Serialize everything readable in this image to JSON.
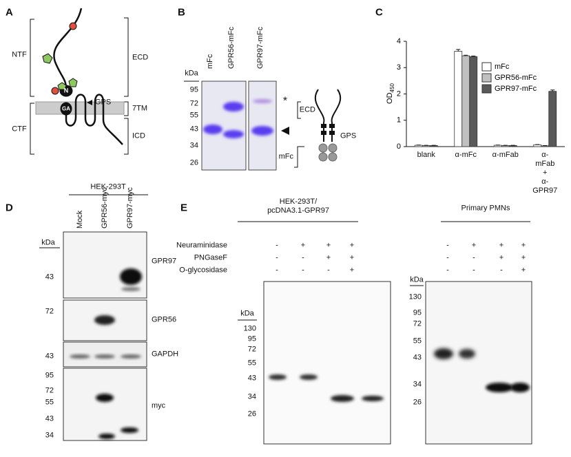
{
  "panel_labels": [
    "A",
    "B",
    "C",
    "D",
    "E"
  ],
  "panel_a": {
    "ntf": "NTF",
    "ecd": "ECD",
    "gps": "GPS",
    "ctf": "CTF",
    "tm": "7TM",
    "icd": "ICD",
    "n_domain": "N",
    "ga_domain": "GA"
  },
  "panel_b": {
    "kda": "kDa",
    "lanes": [
      "mFc",
      "GPR56-mFc",
      "GPR97-mFc"
    ],
    "markers": [
      95,
      72,
      55,
      43,
      34,
      26
    ],
    "asterisk": "*",
    "schematic": {
      "ecd": "ECD",
      "gps": "GPS",
      "mfc": "mFc"
    }
  },
  "chart_data": {
    "type": "bar",
    "y_label": {
      "main": "OD",
      "sub": "450"
    },
    "categories": [
      "blank",
      "α-mFc",
      "α-mFab",
      "α-mFab\n+\nα-GPR97"
    ],
    "series": [
      {
        "name": "mFc",
        "color": "#ffffff",
        "values": [
          0.05,
          3.62,
          0.05,
          0.07
        ],
        "errors": [
          0.01,
          0.07,
          0.01,
          0.01
        ]
      },
      {
        "name": "GPR56-mFc",
        "color": "#c0c0c0",
        "values": [
          0.04,
          3.45,
          0.04,
          0.03
        ],
        "errors": [
          0.01,
          0.02,
          0.01,
          0.01
        ]
      },
      {
        "name": "GPR97-mFc",
        "color": "#595959",
        "values": [
          0.04,
          3.42,
          0.04,
          2.1
        ],
        "errors": [
          0.01,
          0.02,
          0.01,
          0.05
        ]
      }
    ],
    "ylim": [
      0,
      4
    ],
    "yticks": [
      0,
      1,
      2,
      3,
      4
    ],
    "legend": "upper right"
  },
  "panel_d": {
    "cell_line": "HEK-293T",
    "lanes": [
      "Mock",
      "GPR56-myc",
      "GPR97-myc"
    ],
    "kda": "kDa",
    "blots": [
      {
        "label": "GPR97",
        "markers": [
          43
        ]
      },
      {
        "label": "GPR56",
        "markers": [
          72
        ]
      },
      {
        "label": "GAPDH",
        "markers": [
          43
        ]
      },
      {
        "label": "myc",
        "markers": [
          95,
          72,
          55,
          43,
          34
        ]
      }
    ]
  },
  "panel_e": {
    "left_title": "HEK-293T/\npcDNA3.1-GPR97",
    "right_title": "Primary PMNs",
    "kda": "kDa",
    "treatments": [
      {
        "name": "Neuraminidase",
        "left": [
          "-",
          "+",
          "+",
          "+"
        ],
        "right": [
          "-",
          "+",
          "+",
          "+"
        ]
      },
      {
        "name": "PNGaseF",
        "left": [
          "-",
          "-",
          "+",
          "+"
        ],
        "right": [
          "-",
          "-",
          "+",
          "+"
        ]
      },
      {
        "name": "O-glycosidase",
        "left": [
          "-",
          "-",
          "-",
          "+"
        ],
        "right": [
          "-",
          "-",
          "-",
          "+"
        ]
      }
    ],
    "left_markers": [
      130,
      95,
      72,
      55,
      43,
      34,
      26
    ],
    "right_markers": [
      130,
      95,
      72,
      55,
      43,
      34,
      26
    ]
  }
}
